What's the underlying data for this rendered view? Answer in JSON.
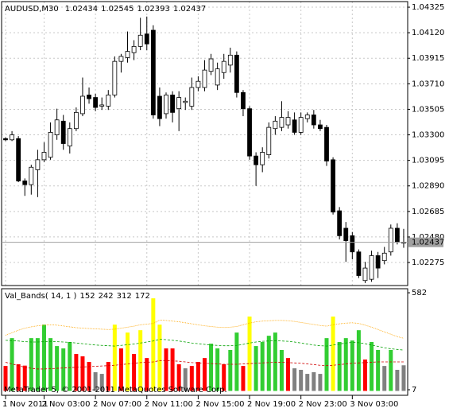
{
  "chart_data": [
    {
      "type": "candlestick",
      "title": "AUDUSD,M30",
      "categories": [
        "1 Nov 2011",
        null,
        null,
        null,
        null,
        null,
        "2 Nov 03:00",
        null,
        null,
        null,
        null,
        null,
        null,
        null,
        "2 Nov 07:00",
        null,
        null,
        null,
        null,
        null,
        null,
        null,
        "2 Nov 11:00",
        null,
        null,
        null,
        null,
        null,
        null,
        null,
        "2 Nov 15:00",
        null,
        null,
        null,
        null,
        null,
        null,
        null,
        "2 Nov 19:00",
        null,
        null,
        null,
        null,
        null,
        null,
        null,
        "2 Nov 23:00",
        null,
        null,
        null,
        null,
        null,
        null,
        null,
        "3 Nov 03:00",
        null,
        null,
        null,
        null,
        null,
        null,
        null,
        null
      ],
      "open": [
        1.0327,
        1.0326,
        1.0327,
        1.0293,
        1.029,
        1.0302,
        1.031,
        1.0312,
        1.033,
        1.0341,
        1.0321,
        1.0335,
        1.0347,
        1.0362,
        1.036,
        1.0353,
        1.0353,
        1.0362,
        1.0389,
        1.0392,
        1.0396,
        1.0401,
        1.0411,
        1.0414,
        1.0361,
        1.0347,
        1.0362,
        1.0351,
        1.0356,
        1.0353,
        1.0368,
        1.0368,
        1.0381,
        1.037,
        1.038,
        1.0386,
        1.0394,
        1.0364,
        1.0351,
        1.0313,
        1.0306,
        1.0314,
        1.0335,
        1.0336,
        1.0338,
        1.0342,
        1.0332,
        1.0343,
        1.0346,
        1.0338,
        1.0336,
        1.031,
        1.0269,
        1.0255,
        1.0249,
        1.0236,
        1.0213,
        1.0214,
        1.0233,
        1.0229,
        1.0236,
        1.0255,
        1.02434
      ],
      "high": [
        1.0328,
        1.0333,
        1.0329,
        1.0295,
        1.0306,
        1.0318,
        1.0324,
        1.034,
        1.0351,
        1.0346,
        1.034,
        1.0352,
        1.0376,
        1.0368,
        1.0363,
        1.036,
        1.0366,
        1.0393,
        1.0395,
        1.0413,
        1.0406,
        1.0424,
        1.0425,
        1.0418,
        1.0368,
        1.0364,
        1.0365,
        1.0365,
        1.036,
        1.0376,
        1.0377,
        1.039,
        1.0395,
        1.0388,
        1.0395,
        1.04,
        1.0397,
        1.0366,
        1.0353,
        1.0316,
        1.032,
        1.034,
        1.0345,
        1.0357,
        1.0349,
        1.0348,
        1.0348,
        1.0348,
        1.035,
        1.0342,
        1.0338,
        1.0312,
        1.0272,
        1.026,
        1.0252,
        1.0238,
        1.0228,
        1.0237,
        1.0236,
        1.024,
        1.0258,
        1.0259,
        1.02545
      ],
      "low": [
        1.0325,
        1.0325,
        1.0292,
        1.0281,
        1.0282,
        1.028,
        1.0308,
        1.031,
        1.0326,
        1.0318,
        1.0315,
        1.0333,
        1.0345,
        1.0355,
        1.0349,
        1.035,
        1.035,
        1.036,
        1.038,
        1.0388,
        1.039,
        1.0398,
        1.0398,
        1.0343,
        1.0337,
        1.0343,
        1.034,
        1.0333,
        1.035,
        1.035,
        1.0365,
        1.0365,
        1.0378,
        1.0366,
        1.0375,
        1.038,
        1.036,
        1.0345,
        1.031,
        1.0289,
        1.03,
        1.0311,
        1.033,
        1.0333,
        1.0335,
        1.033,
        1.033,
        1.034,
        1.0335,
        1.0333,
        1.0305,
        1.0266,
        1.0246,
        1.0228,
        1.023,
        1.0215,
        1.0211,
        1.0212,
        1.0215,
        1.0226,
        1.0233,
        1.0242,
        1.02393
      ],
      "close": [
        1.0326,
        1.033,
        1.0293,
        1.029,
        1.0304,
        1.031,
        1.0316,
        1.0332,
        1.0342,
        1.0323,
        1.0335,
        1.0348,
        1.0361,
        1.0359,
        1.0352,
        1.0354,
        1.0362,
        1.0389,
        1.0393,
        1.0397,
        1.0401,
        1.041,
        1.0403,
        1.0346,
        1.0343,
        1.0362,
        1.0348,
        1.036,
        1.0357,
        1.0368,
        1.0373,
        1.0382,
        1.0391,
        1.0383,
        1.0389,
        1.0394,
        1.0364,
        1.0351,
        1.0313,
        1.0306,
        1.0316,
        1.0336,
        1.0341,
        1.0344,
        1.0344,
        1.0332,
        1.0344,
        1.0346,
        1.0338,
        1.0335,
        1.0309,
        1.0268,
        1.0249,
        1.0245,
        1.0236,
        1.0217,
        1.0223,
        1.0233,
        1.0223,
        1.0235,
        1.0255,
        1.0244,
        1.02437
      ],
      "up_color": "#ffffff",
      "down_color": "#000000",
      "ylim": [
        1.0209,
        1.0437
      ],
      "yticks": [
        1.02275,
        {
          "value": 1.0248,
          "label": "1.02480"
        },
        1.02685,
        {
          "value": 1.0289,
          "label": "1.02890"
        },
        1.03095,
        {
          "value": 1.033,
          "label": "1.03300"
        },
        1.03505,
        {
          "value": 1.0371,
          "label": "1.03710"
        },
        1.03915,
        {
          "value": 1.0412,
          "label": "1.04120"
        },
        1.04325
      ],
      "grid": true
    },
    {
      "type": "bar",
      "title": "Val_Bands( 14, 1 )",
      "values": [
        148,
        313,
        158,
        150,
        313,
        313,
        393,
        313,
        266,
        252,
        290,
        219,
        205,
        172,
        111,
        101,
        172,
        393,
        252,
        346,
        219,
        360,
        195,
        549,
        393,
        252,
        252,
        158,
        134,
        148,
        172,
        195,
        280,
        252,
        158,
        243,
        346,
        148,
        441,
        266,
        290,
        327,
        346,
        243,
        195,
        134,
        125,
        101,
        111,
        101,
        313,
        441,
        290,
        313,
        299,
        360,
        186,
        290,
        243,
        148,
        243,
        125,
        152
      ],
      "colors": [
        "#ff0000",
        "#32cd32",
        "#ff0000",
        "#ff0000",
        "#32cd32",
        "#32cd32",
        "#32cd32",
        "#32cd32",
        "#32cd32",
        "#32cd32",
        "#32cd32",
        "#ff0000",
        "#ff0000",
        "#ff0000",
        "#808080",
        "#808080",
        "#ff0000",
        "#ffff00",
        "#ff0000",
        "#ffff00",
        "#ff0000",
        "#ffff00",
        "#ff0000",
        "#ffff00",
        "#ffff00",
        "#ff0000",
        "#ff0000",
        "#ff0000",
        "#808080",
        "#ff0000",
        "#ff0000",
        "#ff0000",
        "#32cd32",
        "#32cd32",
        "#ff0000",
        "#32cd32",
        "#32cd32",
        "#ff0000",
        "#ffff00",
        "#32cd32",
        "#32cd32",
        "#32cd32",
        "#32cd32",
        "#32cd32",
        "#ff0000",
        "#808080",
        "#808080",
        "#808080",
        "#808080",
        "#808080",
        "#32cd32",
        "#ffff00",
        "#32cd32",
        "#32cd32",
        "#32cd32",
        "#32cd32",
        "#ff0000",
        "#32cd32",
        "#32cd32",
        "#808080",
        "#32cd32",
        "#808080",
        "#808080"
      ],
      "bands": [
        {
          "color": "#ffa500",
          "values": [
            330,
            345,
            360,
            372,
            380,
            386,
            390,
            392,
            390,
            385,
            380,
            375,
            372,
            370,
            368,
            366,
            364,
            366,
            372,
            378,
            384,
            392,
            396,
            400,
            420,
            418,
            414,
            410,
            404,
            398,
            392,
            386,
            382,
            378,
            376,
            378,
            382,
            392,
            402,
            410,
            414,
            416,
            418,
            418,
            416,
            412,
            406,
            400,
            394,
            388,
            384,
            392,
            398,
            402,
            404,
            400,
            390,
            378,
            364,
            350,
            336,
            322,
            312
          ]
        },
        {
          "color": "#00a000",
          "values": [
            300,
            298,
            296,
            292,
            290,
            290,
            292,
            294,
            292,
            290,
            288,
            284,
            280,
            276,
            272,
            270,
            268,
            266,
            270,
            274,
            278,
            284,
            290,
            296,
            306,
            304,
            300,
            296,
            290,
            284,
            280,
            276,
            272,
            270,
            268,
            268,
            270,
            276,
            284,
            290,
            294,
            296,
            298,
            296,
            294,
            290,
            284,
            278,
            272,
            268,
            266,
            272,
            278,
            284,
            288,
            286,
            280,
            272,
            264,
            256,
            250,
            246,
            242
          ]
        },
        {
          "color": "#d00000",
          "values": [
            170,
            160,
            150,
            140,
            134,
            130,
            130,
            132,
            134,
            136,
            138,
            140,
            142,
            144,
            146,
            148,
            150,
            152,
            156,
            160,
            164,
            168,
            170,
            172,
            180,
            180,
            178,
            176,
            172,
            168,
            166,
            164,
            162,
            160,
            158,
            158,
            158,
            160,
            162,
            164,
            166,
            168,
            170,
            170,
            168,
            166,
            164,
            160,
            156,
            152,
            150,
            152,
            156,
            160,
            164,
            166,
            168,
            170,
            172,
            172,
            172,
            172,
            172
          ]
        }
      ],
      "ylim": [
        -26,
        606
      ],
      "yticks": [
        7,
        582
      ],
      "watermark": "MetaTrader 5, © 2001-2011 MetaQuotes Software Corp."
    }
  ]
}
